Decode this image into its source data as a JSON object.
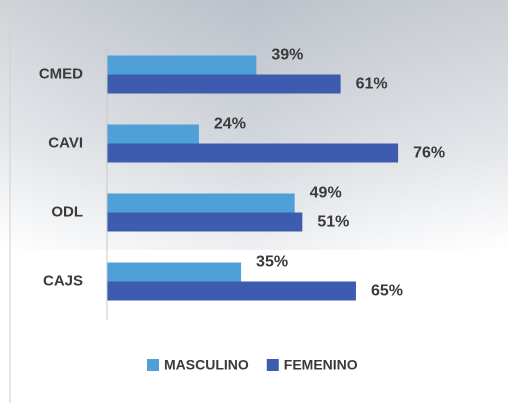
{
  "chart_data": {
    "type": "bar",
    "orientation": "horizontal",
    "categories": [
      "CMED",
      "CAVI",
      "ODL",
      "CAJS"
    ],
    "series": [
      {
        "name": "MASCULINO",
        "color": "#4f9fd9",
        "values": [
          39,
          24,
          49,
          35
        ],
        "value_labels": [
          "39%",
          "24%",
          "49%",
          "35%"
        ]
      },
      {
        "name": "FEMENINO",
        "color": "#3d5cb0",
        "values": [
          61,
          76,
          51,
          65
        ],
        "value_labels": [
          "61%",
          "76%",
          "51%",
          "65%"
        ]
      }
    ],
    "xlim": [
      0,
      100
    ],
    "legend": "bottom"
  }
}
